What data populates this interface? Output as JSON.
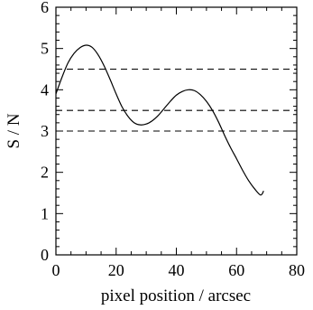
{
  "chart_data": {
    "type": "line",
    "title": "",
    "xlabel": "pixel position / arcsec",
    "ylabel": "S / N",
    "xlim": [
      0,
      80
    ],
    "ylim": [
      0,
      6
    ],
    "xticks": [
      0,
      20,
      40,
      60,
      80
    ],
    "yticks": [
      0,
      1,
      2,
      3,
      4,
      5,
      6
    ],
    "xtick_labels": [
      "0",
      "20",
      "40",
      "60",
      "80"
    ],
    "ytick_labels": [
      "0",
      "1",
      "2",
      "3",
      "4",
      "5",
      "6"
    ],
    "grid": false,
    "series": [
      {
        "style": "solid",
        "color": "#000000",
        "x": [
          0,
          2,
          4,
          6,
          8,
          10,
          12,
          14,
          16,
          18,
          20,
          22,
          24,
          26,
          28,
          30,
          32,
          34,
          36,
          38,
          40,
          42,
          44,
          46,
          48,
          50,
          52,
          54,
          56,
          58,
          60,
          62,
          64,
          66,
          68,
          69
        ],
        "y": [
          3.9,
          4.3,
          4.65,
          4.88,
          5.02,
          5.08,
          5.03,
          4.85,
          4.58,
          4.25,
          3.9,
          3.58,
          3.35,
          3.2,
          3.15,
          3.17,
          3.25,
          3.38,
          3.55,
          3.72,
          3.87,
          3.96,
          4.0,
          3.98,
          3.88,
          3.72,
          3.5,
          3.22,
          2.9,
          2.6,
          2.33,
          2.05,
          1.8,
          1.6,
          1.45,
          1.55
        ]
      }
    ],
    "hlines": [
      {
        "y": 4.5,
        "style": "dashed",
        "color": "#000000"
      },
      {
        "y": 3.5,
        "style": "dashed",
        "color": "#000000"
      },
      {
        "y": 3.0,
        "style": "dashed",
        "color": "#000000"
      }
    ]
  }
}
